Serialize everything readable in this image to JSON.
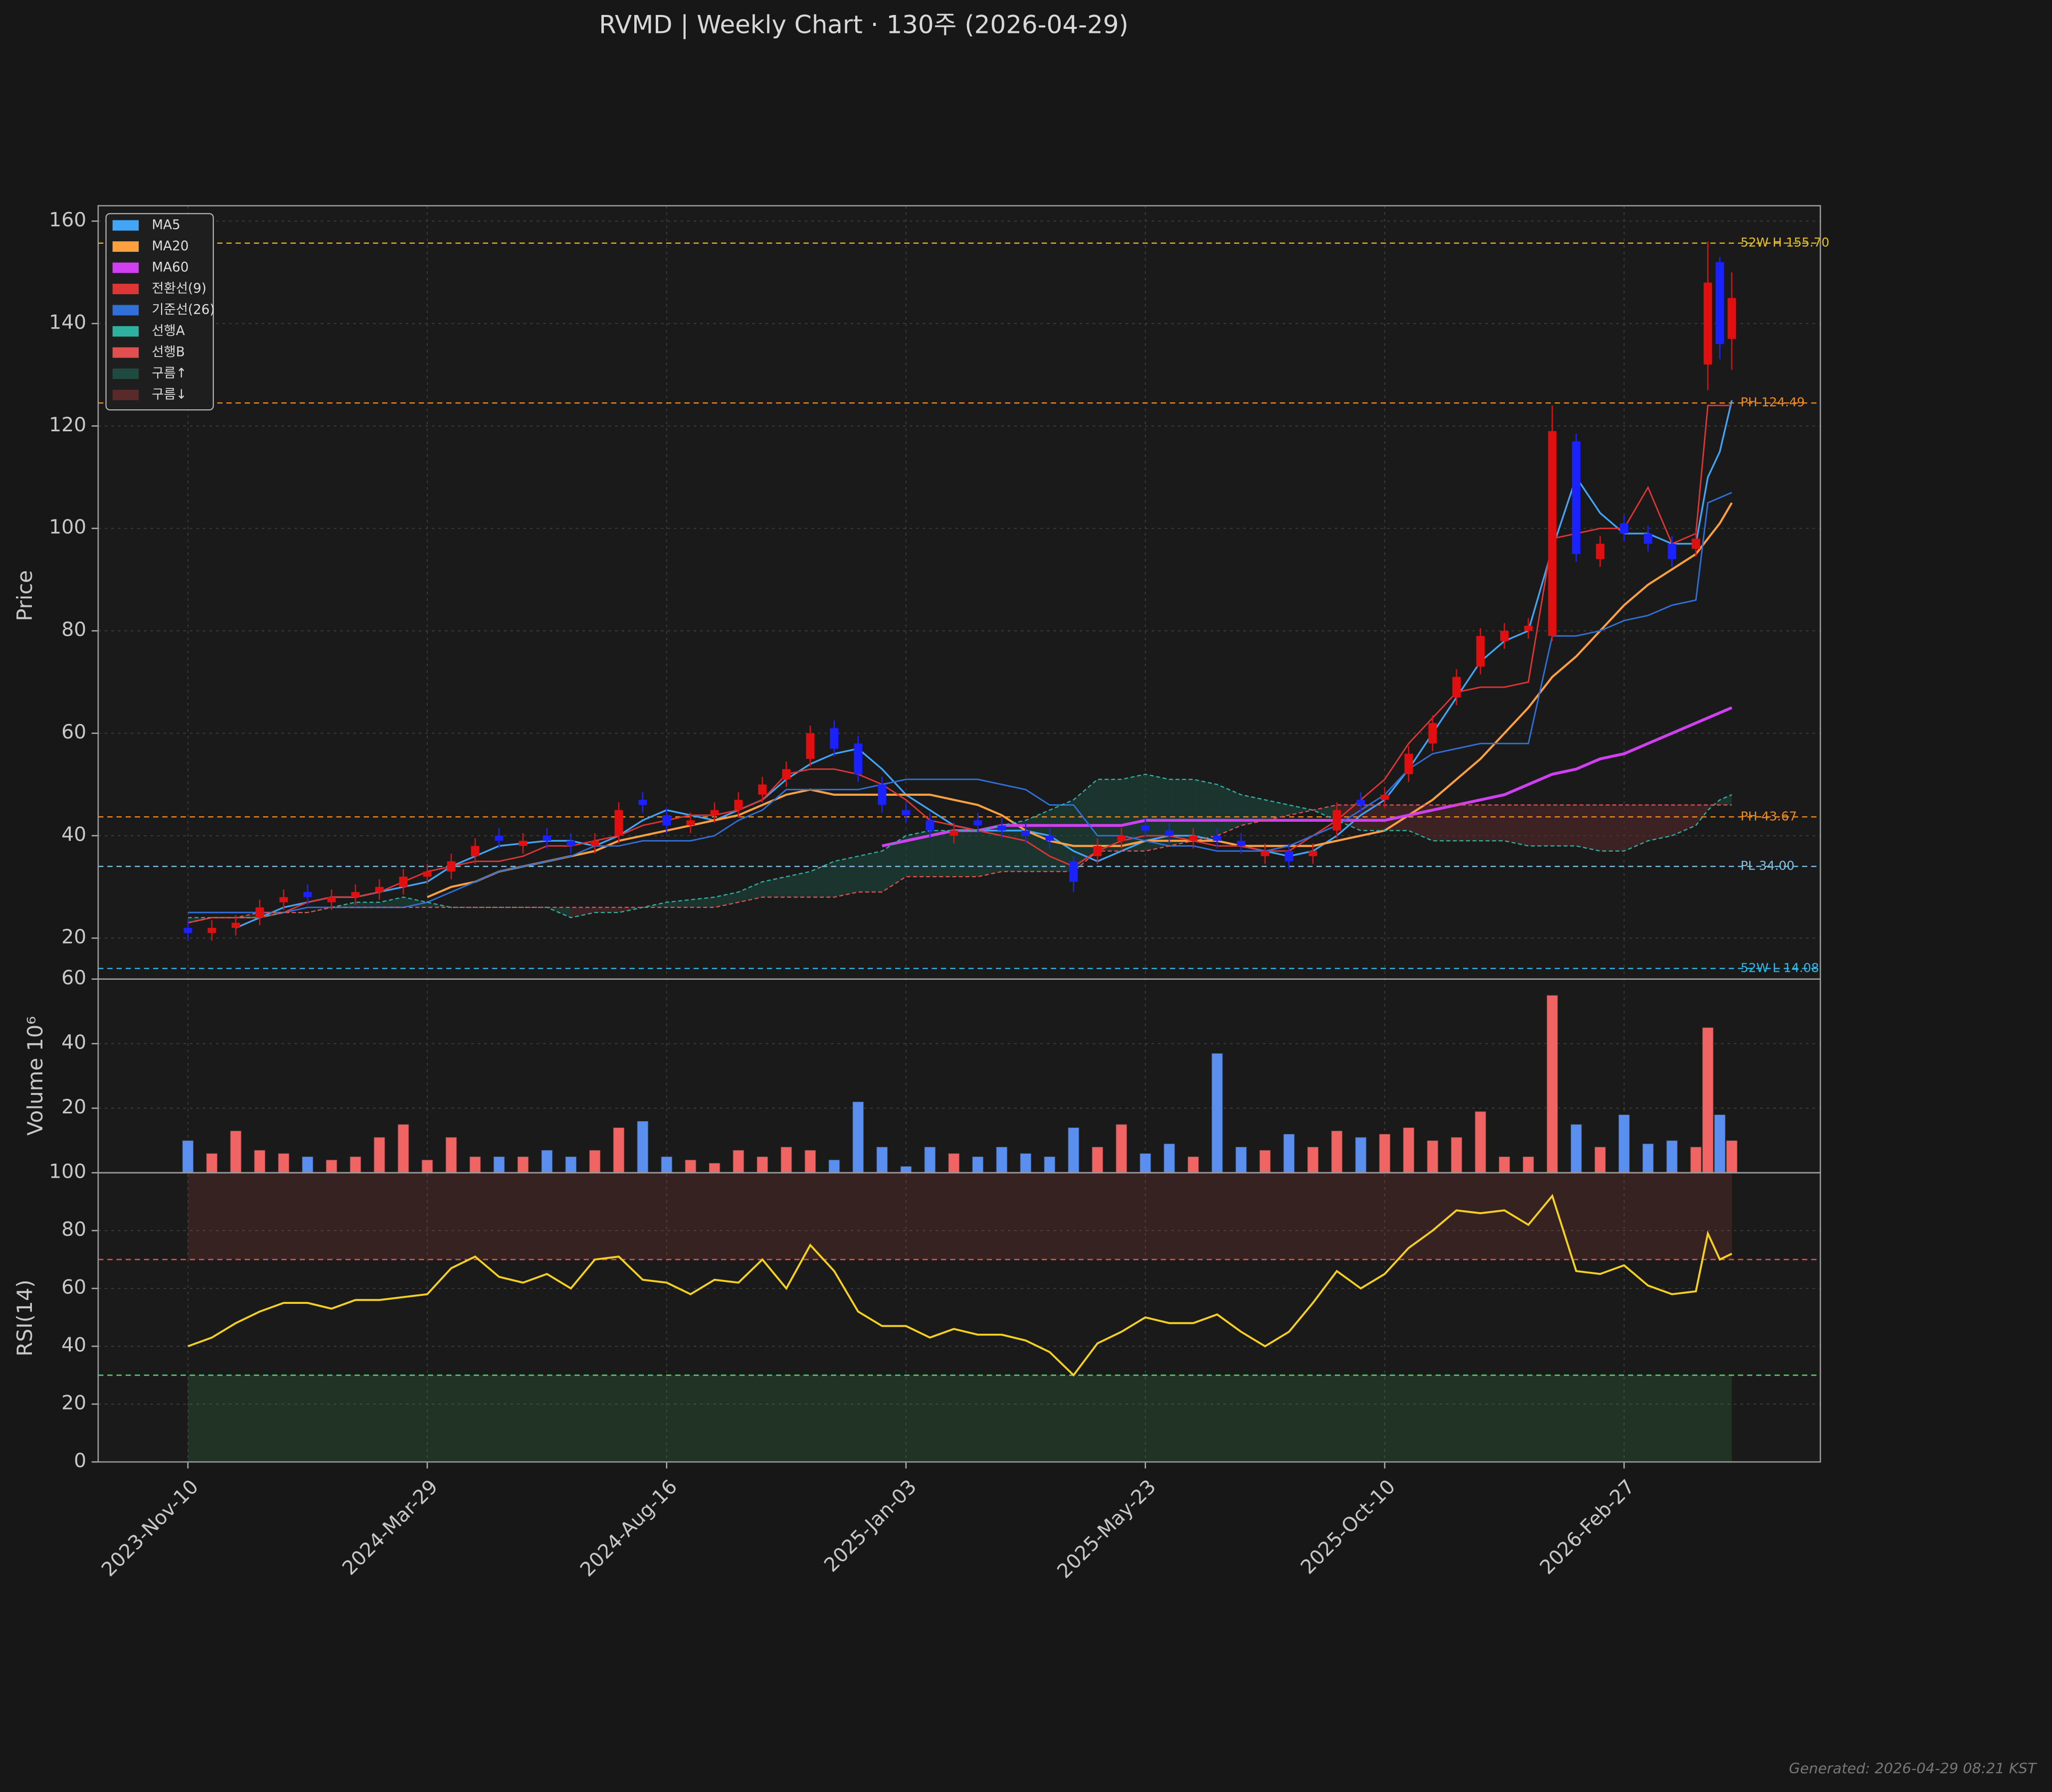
{
  "chart_data": {
    "type": "candlestick",
    "title": "RVMD  |  Weekly Chart · 130주  (2026-04-29)",
    "footnote": "Generated: 2026-04-29 08:21 KST",
    "x": [
      0,
      2,
      4,
      6,
      8,
      10,
      12,
      14,
      16,
      18,
      20,
      22,
      24,
      26,
      28,
      30,
      32,
      34,
      36,
      38,
      40,
      42,
      44,
      46,
      48,
      50,
      52,
      54,
      56,
      58,
      60,
      62,
      64,
      66,
      68,
      70,
      72,
      74,
      76,
      78,
      80,
      82,
      84,
      86,
      88,
      90,
      92,
      94,
      96,
      98,
      100,
      102,
      104,
      106,
      108,
      110,
      112,
      114,
      116,
      118,
      120,
      122,
      124,
      126,
      127,
      128,
      129
    ],
    "xlim": [
      -7.5,
      136.4
    ],
    "xticks": [
      {
        "value": 0,
        "label": "2023-Nov-10"
      },
      {
        "value": 20,
        "label": "2024-Mar-29"
      },
      {
        "value": 40,
        "label": "2024-Aug-16"
      },
      {
        "value": 60,
        "label": "2025-Jan-03"
      },
      {
        "value": 80,
        "label": "2025-May-23"
      },
      {
        "value": 100,
        "label": "2025-Oct-10"
      },
      {
        "value": 120,
        "label": "2026-Feb-27"
      }
    ],
    "grid": true,
    "price": {
      "ylabel": "Price",
      "ylim": [
        12,
        163
      ],
      "yticks": [
        20,
        40,
        60,
        80,
        100,
        120,
        140,
        160
      ],
      "up_color": "#e01010",
      "down_color": "#1a22ff",
      "open": [
        22,
        21,
        22,
        24,
        27,
        29,
        27,
        28,
        29,
        30,
        32,
        33,
        36,
        40,
        38,
        40,
        39,
        38,
        40,
        47,
        44,
        42,
        44,
        45,
        48,
        51,
        55,
        61,
        58,
        50,
        45,
        43,
        40,
        43,
        42,
        41,
        40,
        35,
        36,
        39,
        42,
        41,
        39,
        40,
        39,
        36,
        37,
        36,
        41,
        47,
        47,
        52,
        58,
        67,
        73,
        78,
        80,
        79,
        117,
        94,
        101,
        99,
        97,
        96,
        132,
        152,
        137
      ],
      "high": [
        23.5,
        23.5,
        24.5,
        27.5,
        29.5,
        30.5,
        29.5,
        30.5,
        31.5,
        33.5,
        34.5,
        36.5,
        39.5,
        41.5,
        40.5,
        41.5,
        40.5,
        40.5,
        46.5,
        48.5,
        45.5,
        44.5,
        46.5,
        48.5,
        51.5,
        54.5,
        61.5,
        62.5,
        59.5,
        51.5,
        46.5,
        44.5,
        42.5,
        44.5,
        43.5,
        42.5,
        41.5,
        36,
        39.5,
        41.5,
        43.5,
        42.5,
        41.5,
        41.5,
        40.5,
        38.5,
        38.5,
        38.5,
        46.5,
        48.5,
        49.5,
        57.5,
        63.5,
        72.5,
        80.5,
        81.5,
        82.5,
        124,
        118.5,
        98.5,
        102.5,
        100.5,
        98.5,
        99.5,
        156,
        153,
        150
      ],
      "low": [
        19.5,
        19.5,
        20.5,
        22.5,
        25.5,
        26.5,
        25.5,
        26.5,
        27.5,
        28.5,
        30.5,
        31.5,
        34.5,
        37.5,
        36.5,
        37.5,
        36.5,
        36.5,
        38.5,
        44.5,
        40.5,
        40.5,
        42.5,
        43.5,
        46.5,
        49.5,
        53.5,
        55.5,
        50.5,
        44.5,
        42.5,
        39.5,
        38.5,
        40.5,
        39.5,
        38.5,
        37.5,
        29,
        34.5,
        37.5,
        39.5,
        38.5,
        37.5,
        37.5,
        36.5,
        34.5,
        33.5,
        34.5,
        39.5,
        44.5,
        45.5,
        50.5,
        56.5,
        65.5,
        71.5,
        76.5,
        78.5,
        78,
        93.5,
        92.5,
        97.5,
        95.5,
        92.5,
        94.5,
        127,
        133,
        131
      ],
      "close": [
        21,
        22,
        23,
        26,
        28,
        28,
        28,
        29,
        30,
        32,
        33,
        35,
        38,
        39,
        39,
        39,
        38,
        39,
        45,
        46,
        42,
        43,
        45,
        47,
        50,
        53,
        60,
        57,
        52,
        46,
        44,
        41,
        41,
        42,
        41,
        40,
        39,
        31,
        38,
        40,
        41,
        40,
        40,
        39,
        38,
        37,
        35,
        37,
        45,
        46,
        48,
        56,
        62,
        71,
        79,
        80,
        81,
        119,
        95,
        97,
        99,
        97,
        94,
        98,
        148,
        136,
        145
      ]
    },
    "series": [
      {
        "name": "MA5",
        "color": "#42a5f5",
        "width": 1.3,
        "values": [
          null,
          null,
          22,
          24,
          26,
          27,
          28,
          28,
          29,
          30,
          31,
          34,
          36,
          38,
          38.5,
          39,
          39,
          38,
          40,
          43,
          45,
          44,
          43,
          45,
          47,
          51,
          54,
          56,
          57,
          53,
          48,
          45,
          42,
          41,
          41,
          41,
          40,
          37,
          35,
          37,
          39,
          40,
          40,
          39,
          38,
          37,
          36,
          37,
          40,
          44,
          47,
          53,
          60,
          67,
          74,
          78,
          80,
          96,
          110,
          103,
          99,
          99,
          97,
          97,
          110,
          115,
          125
        ]
      },
      {
        "name": "MA20",
        "color": "#ffa040",
        "width": 1.6,
        "values": [
          null,
          null,
          null,
          null,
          null,
          null,
          null,
          null,
          null,
          null,
          28,
          30,
          31,
          33,
          34,
          35,
          36,
          37,
          39,
          40,
          41,
          42,
          43,
          44,
          46,
          48,
          49,
          48,
          48,
          48,
          48,
          48,
          47,
          46,
          44,
          41,
          39,
          38,
          38,
          38,
          39,
          39,
          39,
          39,
          38,
          38,
          38,
          38,
          39,
          40,
          41,
          44,
          47,
          51,
          55,
          60,
          65,
          71,
          75,
          80,
          85,
          89,
          92,
          95,
          98,
          101,
          105
        ]
      },
      {
        "name": "MA60",
        "color": "#d040f0",
        "width": 2.2,
        "values": [
          null,
          null,
          null,
          null,
          null,
          null,
          null,
          null,
          null,
          null,
          null,
          null,
          null,
          null,
          null,
          null,
          null,
          null,
          null,
          null,
          null,
          null,
          null,
          null,
          null,
          null,
          null,
          null,
          null,
          38,
          39,
          40,
          41,
          41,
          42,
          42,
          42,
          42,
          42,
          42,
          43,
          43,
          43,
          43,
          43,
          43,
          43,
          43,
          43,
          43,
          43,
          44,
          45,
          46,
          47,
          48,
          50,
          52,
          53,
          55,
          56,
          58,
          60,
          62,
          63,
          64,
          65
        ]
      },
      {
        "name": "전환선(9)",
        "color": "#e03535",
        "width": 1.1,
        "values": [
          23,
          24,
          24,
          24,
          25,
          27,
          28,
          28,
          29,
          31,
          33,
          34,
          35,
          35,
          36,
          38,
          38,
          39,
          40,
          42,
          43,
          44,
          44,
          45,
          47,
          52,
          53,
          53,
          52,
          50,
          47,
          43,
          42,
          41,
          40,
          39,
          36,
          34,
          37,
          39,
          40,
          40,
          39,
          38,
          38,
          37,
          37,
          40,
          43,
          47,
          51,
          58,
          63,
          68,
          69,
          69,
          70,
          98,
          99,
          100,
          100,
          108,
          97,
          99,
          124,
          124,
          124
        ]
      },
      {
        "name": "기준선(26)",
        "color": "#3070d8",
        "width": 1.1,
        "values": [
          25,
          25,
          25,
          25,
          25,
          26,
          26,
          26,
          26,
          26,
          27,
          29,
          31,
          33,
          34,
          35,
          36,
          38,
          38,
          39,
          39,
          39,
          40,
          43,
          45,
          49,
          49,
          49,
          49,
          50,
          51,
          51,
          51,
          51,
          50,
          49,
          46,
          46,
          40,
          40,
          39,
          38,
          38,
          37,
          37,
          37,
          38,
          40,
          42,
          45,
          48,
          53,
          56,
          57,
          58,
          58,
          58,
          79,
          79,
          80,
          82,
          83,
          85,
          86,
          105,
          106,
          107
        ]
      },
      {
        "name": "선행A",
        "color": "#30b0a0",
        "width": 0.9,
        "dash": true,
        "values": [
          24,
          24,
          24,
          24,
          25,
          25,
          26,
          27,
          27,
          28,
          27,
          26,
          26,
          26,
          26,
          26,
          24,
          25,
          25,
          26,
          27,
          27.5,
          28,
          29,
          31,
          32,
          33,
          35,
          36,
          37,
          40,
          41,
          41,
          41,
          42,
          43,
          45,
          47,
          51,
          51,
          52,
          51,
          51,
          50,
          48,
          47,
          46,
          45,
          43,
          41,
          41,
          41,
          39,
          39,
          39,
          39,
          38,
          38,
          38,
          37,
          37,
          39,
          40,
          42,
          45,
          47,
          48
        ]
      },
      {
        "name": "선행B",
        "color": "#e05050",
        "width": 0.9,
        "dash": true,
        "values": [
          23,
          24,
          24,
          25,
          25,
          25,
          26,
          26,
          26,
          26,
          26,
          26,
          26,
          26,
          26,
          26,
          26,
          26,
          26,
          26,
          26,
          26,
          26,
          27,
          28,
          28,
          28,
          28,
          29,
          29,
          32,
          32,
          32,
          32,
          33,
          33,
          33,
          33,
          37,
          37,
          37,
          38,
          39,
          40,
          42,
          43,
          44,
          45,
          46,
          46,
          46,
          46,
          46,
          46,
          46,
          46,
          46,
          46,
          46,
          46,
          46,
          46,
          46,
          46,
          46,
          46,
          46
        ]
      }
    ],
    "cloud": [
      {
        "name": "구름↑",
        "color": "#1f4a40"
      },
      {
        "name": "구름↓",
        "color": "#5a2a2a"
      }
    ],
    "ref_lines": [
      {
        "value": 155.7,
        "label": "52W H 155.70",
        "color": "#e8c020"
      },
      {
        "value": 124.49,
        "label": "PH 124.49",
        "color": "#f08a20"
      },
      {
        "value": 43.67,
        "label": "PH 43.67",
        "color": "#f08a20"
      },
      {
        "value": 34,
        "label": "PL 34.00",
        "color": "#80c0e0"
      },
      {
        "value": 14.08,
        "label": "52W L 14.08",
        "color": "#30b8e8"
      }
    ],
    "volume": {
      "ylabel": "Volume  10⁶",
      "ylim": [
        0,
        60
      ],
      "yticks": [
        20,
        40,
        60
      ],
      "up_color": "#f06464",
      "down_color": "#5a8ff0",
      "values": [
        10,
        6,
        13,
        7,
        6,
        5,
        4,
        5,
        11,
        15,
        4,
        11,
        5,
        5,
        5,
        7,
        5,
        7,
        14,
        16,
        5,
        4,
        3,
        7,
        5,
        8,
        7,
        4,
        22,
        8,
        2,
        8,
        6,
        5,
        8,
        6,
        5,
        14,
        8,
        15,
        6,
        9,
        5,
        37,
        8,
        7,
        12,
        8,
        13,
        11,
        12,
        14,
        10,
        11,
        19,
        5,
        5,
        55,
        15,
        8,
        18,
        9,
        10,
        8,
        45,
        18,
        10
      ]
    },
    "rsi": {
      "ylabel": "RSI(14)",
      "ylim": [
        0,
        100
      ],
      "yticks": [
        0,
        20,
        40,
        60,
        80,
        100
      ],
      "color": "#f5d020",
      "overbought": 70,
      "oversold": 30,
      "values": [
        40,
        43,
        48,
        52,
        55,
        55,
        53,
        56,
        56,
        57,
        58,
        67,
        71,
        64,
        62,
        65,
        60,
        70,
        71,
        63,
        62,
        58,
        63,
        62,
        70,
        60,
        75,
        66,
        52,
        47,
        47,
        43,
        46,
        44,
        44,
        42,
        38,
        30,
        41,
        45,
        50,
        48,
        48,
        51,
        45,
        40,
        45,
        55,
        66,
        60,
        65,
        74,
        80,
        87,
        86,
        87,
        82,
        92,
        66,
        65,
        68,
        61,
        58,
        59,
        79,
        70,
        72
      ]
    }
  }
}
